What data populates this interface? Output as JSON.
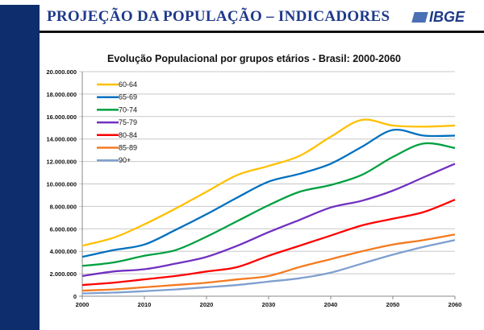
{
  "header": {
    "title": "PROJEÇÃO DA POPULAÇÃO – INDICADORES",
    "logo": "IBGE"
  },
  "chart_data": {
    "type": "line",
    "title": "Evolução Populacional por grupos etários - Brasil: 2000-2060",
    "xlabel": "",
    "ylabel": "",
    "x": [
      2000,
      2005,
      2010,
      2015,
      2020,
      2025,
      2030,
      2035,
      2040,
      2045,
      2050,
      2055,
      2060
    ],
    "xticks": [
      "2000",
      "2010",
      "2020",
      "2030",
      "2040",
      "2050",
      "2060"
    ],
    "yticks": [
      "0",
      "2.000.000",
      "4.000.000",
      "6.000.000",
      "8.000.000",
      "10.000.000",
      "12.000.000",
      "14.000.000",
      "16.000.000",
      "18.000.000",
      "20.000.000"
    ],
    "ylim": [
      0,
      20000000
    ],
    "xlim": [
      2000,
      2060
    ],
    "grid": "horizontal",
    "legend": "top-left",
    "series": [
      {
        "name": "60-64",
        "color": "#ffc000",
        "values": [
          4500000,
          5200000,
          6400000,
          7800000,
          9300000,
          10800000,
          11600000,
          12500000,
          14200000,
          15700000,
          15200000,
          15100000,
          15200000
        ]
      },
      {
        "name": "65-69",
        "color": "#0070c0",
        "values": [
          3500000,
          4100000,
          4600000,
          5900000,
          7300000,
          8800000,
          10200000,
          10900000,
          11800000,
          13300000,
          14800000,
          14300000,
          14300000
        ]
      },
      {
        "name": "70-74",
        "color": "#00a040",
        "values": [
          2700000,
          3000000,
          3600000,
          4100000,
          5300000,
          6700000,
          8100000,
          9300000,
          9900000,
          10800000,
          12400000,
          13600000,
          13200000
        ]
      },
      {
        "name": "75-79",
        "color": "#7030c0",
        "values": [
          1800000,
          2200000,
          2400000,
          2900000,
          3500000,
          4500000,
          5700000,
          6800000,
          7900000,
          8500000,
          9400000,
          10600000,
          11800000
        ]
      },
      {
        "name": "80-84",
        "color": "#ff0000",
        "values": [
          1000000,
          1200000,
          1500000,
          1800000,
          2200000,
          2600000,
          3600000,
          4500000,
          5400000,
          6300000,
          6900000,
          7500000,
          8600000
        ]
      },
      {
        "name": "85-89",
        "color": "#f47a20",
        "values": [
          500000,
          600000,
          800000,
          1000000,
          1200000,
          1500000,
          1800000,
          2600000,
          3300000,
          4000000,
          4600000,
          5000000,
          5500000
        ]
      },
      {
        "name": "90+",
        "color": "#7f9fd0",
        "values": [
          250000,
          320000,
          450000,
          600000,
          800000,
          1000000,
          1300000,
          1600000,
          2100000,
          2900000,
          3700000,
          4400000,
          5000000
        ]
      }
    ]
  }
}
